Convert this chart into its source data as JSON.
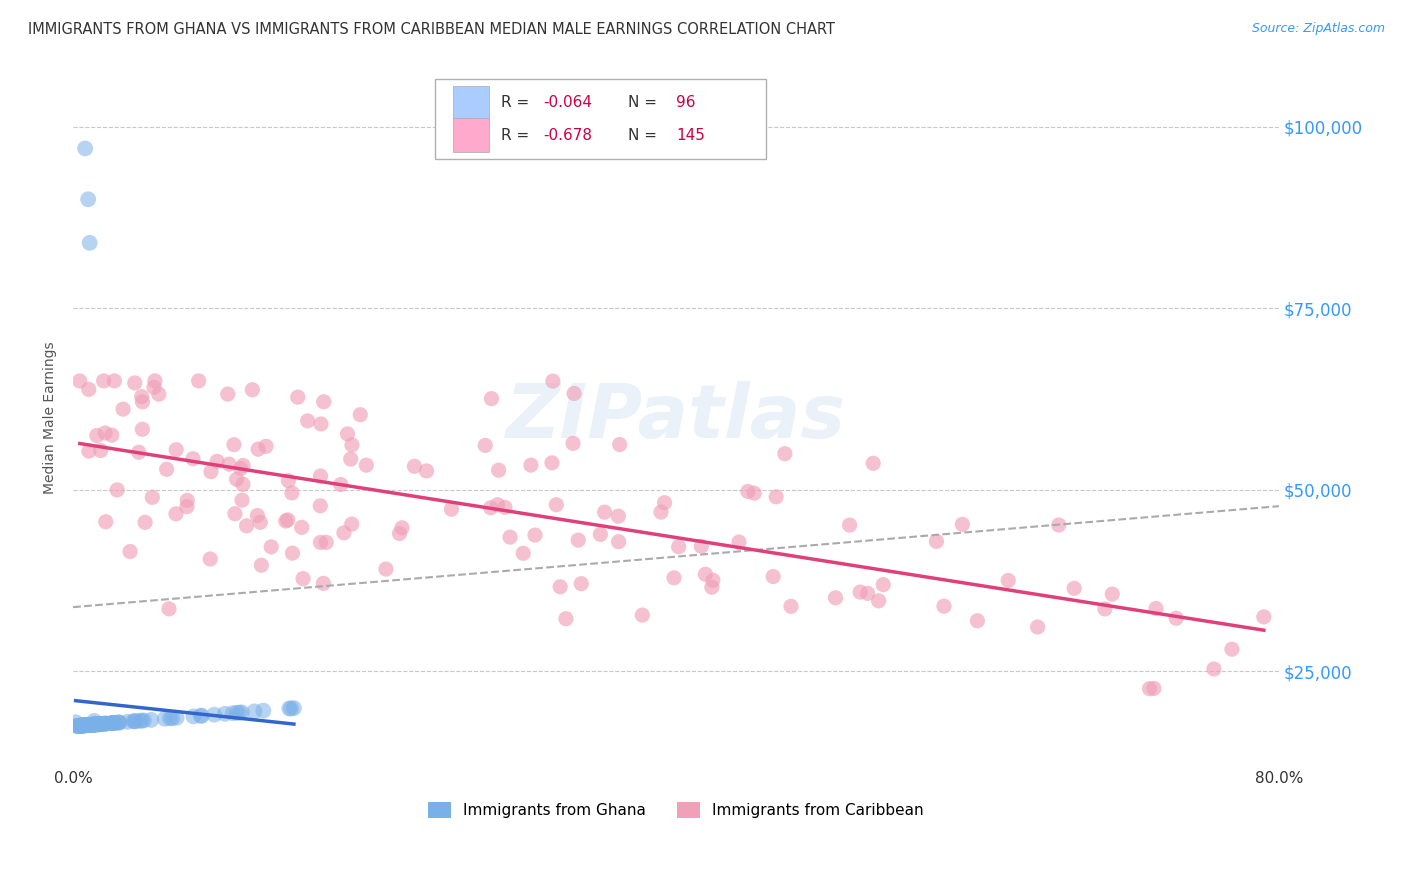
{
  "title": "IMMIGRANTS FROM GHANA VS IMMIGRANTS FROM CARIBBEAN MEDIAN MALE EARNINGS CORRELATION CHART",
  "source": "Source: ZipAtlas.com",
  "ylabel": "Median Male Earnings",
  "y_tick_labels": [
    "$25,000",
    "$50,000",
    "$75,000",
    "$100,000"
  ],
  "y_tick_values": [
    25000,
    50000,
    75000,
    100000
  ],
  "xlim": [
    0.0,
    0.8
  ],
  "ylim": [
    12000,
    108000
  ],
  "watermark": "ZIPatlas",
  "ghana_color": "#7ab0e8",
  "caribbean_color": "#f0a0b8",
  "ghana_R": -0.064,
  "ghana_N": 96,
  "caribbean_R": -0.678,
  "caribbean_N": 145,
  "ghana_trendline_color": "#3366cc",
  "caribbean_trendline_color": "#e0407a",
  "dashed_trendline_color": "#aaaaaa",
  "background_color": "#ffffff",
  "grid_color": "#c8c8c8",
  "legend_R1": "-0.064",
  "legend_N1": "96",
  "legend_R2": "-0.678",
  "legend_N2": "145",
  "legend_color1": "#aaccff",
  "legend_color2": "#ffaacc",
  "seed": 42
}
